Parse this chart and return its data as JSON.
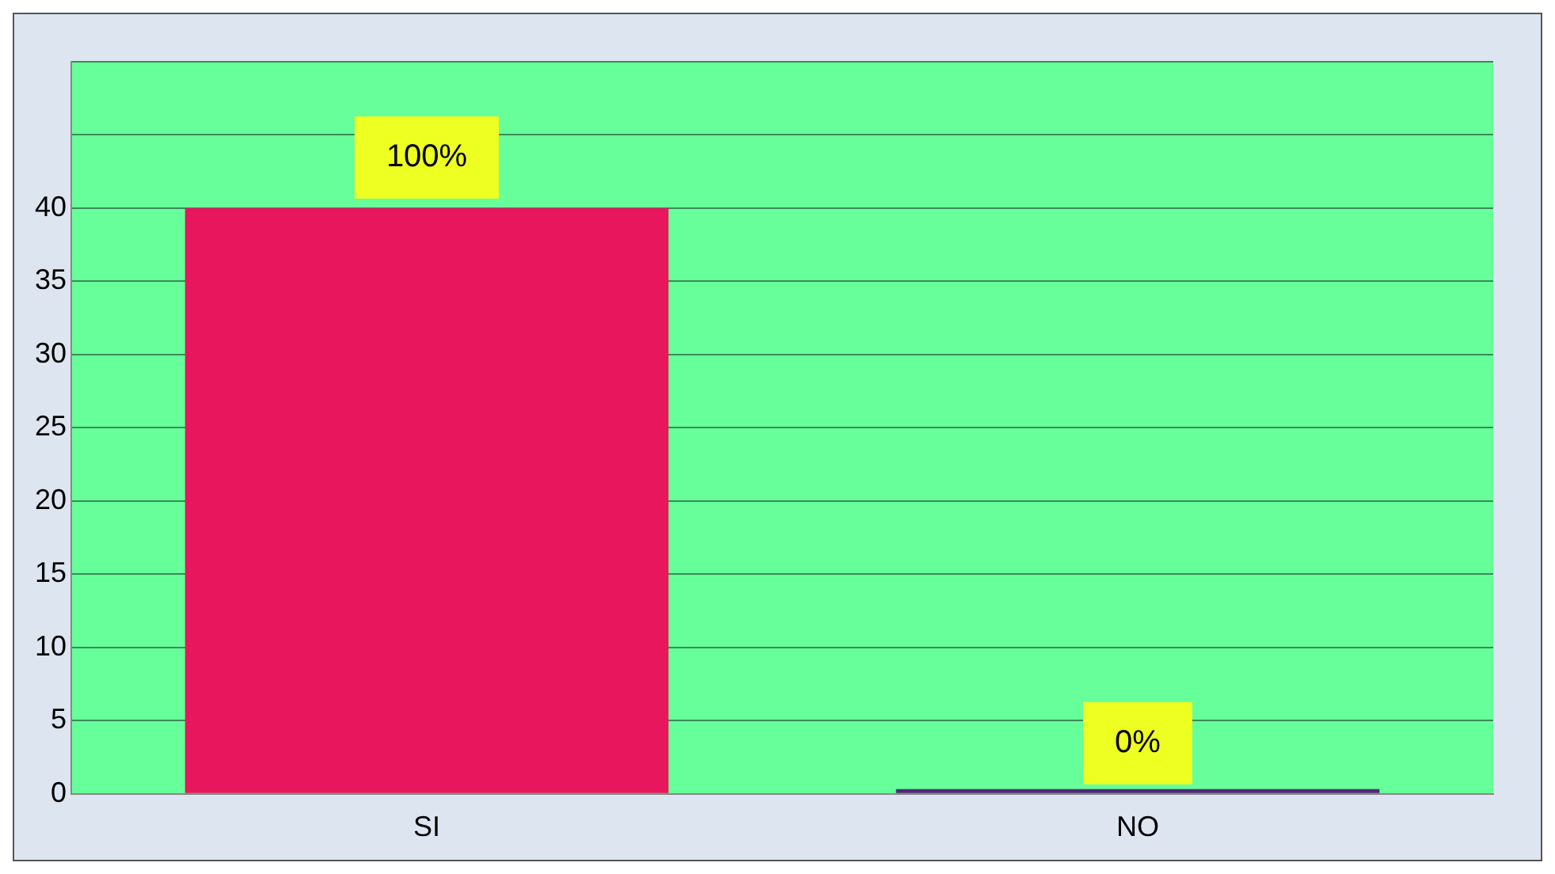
{
  "chart_data": {
    "type": "bar",
    "categories": [
      "SI",
      "NO"
    ],
    "values": [
      40,
      0
    ],
    "colors": [
      "#e8175d",
      "#55267a"
    ],
    "annotations": [
      {
        "text": "100%",
        "x": "SI",
        "y": 40
      },
      {
        "text": "0%",
        "x": "NO",
        "y": 0
      }
    ],
    "ylim": [
      0,
      50
    ],
    "yticks": [
      0,
      5,
      10,
      15,
      20,
      25,
      30,
      35,
      40,
      {
        "value": 45,
        "label": null
      },
      {
        "value": 50,
        "label": null
      }
    ],
    "grid": "y"
  }
}
